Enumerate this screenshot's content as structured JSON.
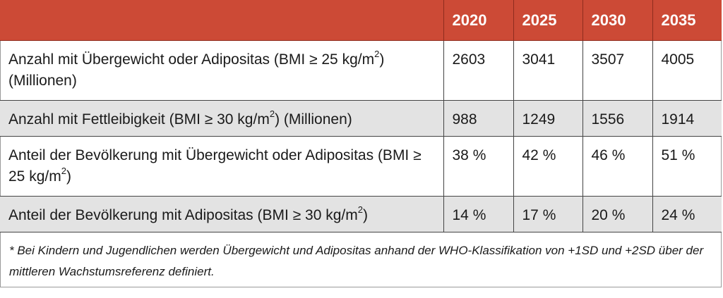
{
  "table": {
    "header": [
      "",
      "2020",
      "2025",
      "2030",
      "2035"
    ],
    "rows": [
      {
        "label": {
          "pre": "Anzahl mit Übergewicht oder Adipositas (BMI ≥ 25 kg/m",
          "sup": "2",
          "post": ") (Millionen)"
        },
        "values": [
          "2603",
          "3041",
          "3507",
          "4005"
        ]
      },
      {
        "label": {
          "pre": "Anzahl mit Fettleibigkeit (BMI ≥ 30 kg/m",
          "sup": "2",
          "post": ") (Millionen)"
        },
        "values": [
          "988",
          "1249",
          "1556",
          "1914"
        ]
      },
      {
        "label": {
          "pre": "Anteil der Bevölkerung mit Übergewicht oder Adipositas (BMI ≥ 25 kg/m",
          "sup": "2",
          "post": ")"
        },
        "values": [
          "38 %",
          "42 %",
          "46 %",
          "51 %"
        ]
      },
      {
        "label": {
          "pre": "Anteil der Bevölkerung mit Adipositas (BMI ≥ 30 kg/m",
          "sup": "2",
          "post": ")"
        },
        "values": [
          "14 %",
          "17 %",
          "20 %",
          "24 %"
        ]
      }
    ]
  },
  "footnote": "* Bei Kindern und Jugendlichen werden Übergewicht und Adipositas anhand der WHO-Klassifikation von +1SD und +2SD über der mittleren Wachstumsreferenz definiert.",
  "colors": {
    "header_bg": "#cc4a36",
    "shaded_row": "#e3e3e3"
  }
}
